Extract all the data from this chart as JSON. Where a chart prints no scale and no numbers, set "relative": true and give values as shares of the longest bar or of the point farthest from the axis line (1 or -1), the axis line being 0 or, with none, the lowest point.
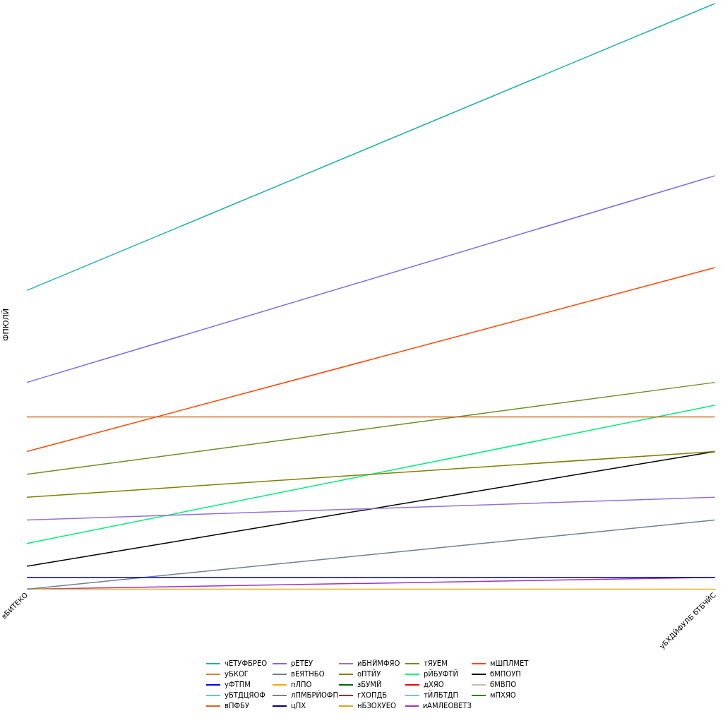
{
  "chart_data": {
    "type": "line",
    "ylabel": "ФПЮЛЙ",
    "categories": [
      "вБИТЕКО",
      "уБХДЙФУЛБ бТБЧЙС"
    ],
    "relative": true,
    "legend": "bottom",
    "marker": "none",
    "line_style": "solid",
    "series": [
      {
        "name": "чЕТУФБРЕО",
        "color": "#20b2aa",
        "values": [
          0.51,
          1
        ]
      },
      {
        "name": "уБКОГ",
        "color": "#cd853f",
        "values": [
          null,
          null
        ]
      },
      {
        "name": "уФТПМ",
        "color": "#0000ff",
        "values": [
          0.02,
          0.02
        ]
      },
      {
        "name": "уБТДЦЯОФ",
        "color": "#66cdaa",
        "values": [
          null,
          null
        ]
      },
      {
        "name": "вПФБУ",
        "color": "#d2691e",
        "values": [
          0.294,
          0.294
        ]
      },
      {
        "name": "рЕТЕУ",
        "color": "#7b68ee",
        "values": [
          0.353,
          0.706
        ]
      },
      {
        "name": "вЕЯТНБО",
        "color": "#708090",
        "values": [
          0,
          0.118
        ]
      },
      {
        "name": "пЛПО",
        "color": "#ffa500",
        "values": [
          0,
          0
        ]
      },
      {
        "name": "лПМБРЙОФП",
        "color": "#808080",
        "values": [
          null,
          null
        ]
      },
      {
        "name": "цПХ",
        "color": "#000080",
        "values": [
          null,
          null
        ]
      },
      {
        "name": "иБНЙМФЯО",
        "color": "#9370db",
        "values": [
          0.118,
          0.157
        ]
      },
      {
        "name": "оПТЙУ",
        "color": "#808000",
        "values": [
          0.157,
          0.235
        ]
      },
      {
        "name": "зБУМЙ",
        "color": "#006400",
        "values": [
          null,
          null
        ]
      },
      {
        "name": "гХОПДБ",
        "color": "#a52a2a",
        "values": [
          null,
          null
        ]
      },
      {
        "name": "нБЗОХУЕО",
        "color": "#daa520",
        "values": [
          null,
          null
        ]
      },
      {
        "name": "тЯУЕМ",
        "color": "#6b8e23",
        "values": [
          0.196,
          0.353
        ]
      },
      {
        "name": "рЙБУФТЙ",
        "color": "#00ee76",
        "values": [
          0.078,
          0.314
        ]
      },
      {
        "name": "дХЯО",
        "color": "#ff0000",
        "values": [
          null,
          null
        ]
      },
      {
        "name": "тЙЛБТДП",
        "color": "#7ec0c8",
        "values": [
          null,
          null
        ]
      },
      {
        "name": "иАМЛЕОВЕТЗ",
        "color": "#9932cc",
        "values": [
          0,
          0.02
        ]
      },
      {
        "name": "мШПЛМЕТ",
        "color": "#ff4500",
        "values": [
          0.235,
          0.549
        ]
      },
      {
        "name": "бМПОУП",
        "color": "#000000",
        "values": [
          0.039,
          0.235
        ]
      },
      {
        "name": "бМВПО",
        "color": "#c8bca8",
        "values": [
          null,
          null
        ]
      },
      {
        "name": "мПХЯО",
        "color": "#3a7d0a",
        "values": [
          null,
          null
        ]
      }
    ]
  }
}
